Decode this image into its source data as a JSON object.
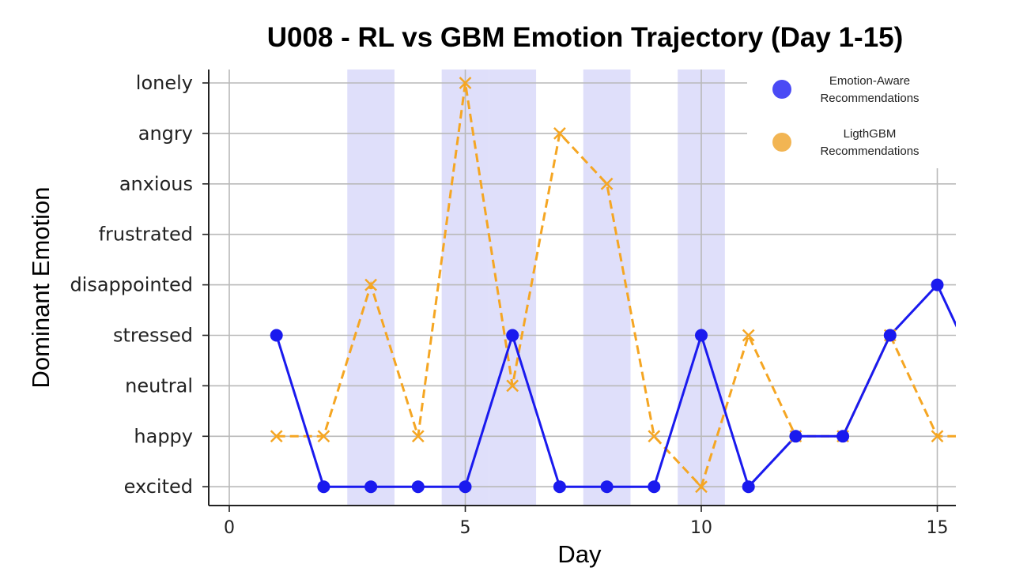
{
  "chart_data": {
    "type": "line",
    "title": "U008 - RL vs GBM Emotion Trajectory (Day 1-15)",
    "xlabel": "Day",
    "ylabel": "Dominant Emotion",
    "xlim": [
      -0.5,
      15.4
    ],
    "x_ticks": [
      0,
      5,
      10,
      15
    ],
    "y_categories": [
      "excited",
      "happy",
      "neutral",
      "stressed",
      "disappointed",
      "frustrated",
      "anxious",
      "angry",
      "lonely"
    ],
    "grid": true,
    "legend_position": "top-right",
    "shaded_days": [
      3,
      5,
      6,
      8,
      10
    ],
    "series": [
      {
        "name": "Emotion-Aware Recommendations",
        "color": "#1a1aee",
        "style": "solid",
        "marker": "circle",
        "x": [
          1,
          2,
          3,
          4,
          5,
          6,
          7,
          8,
          9,
          10,
          11,
          12,
          13,
          14,
          15,
          16
        ],
        "y": [
          "stressed",
          "excited",
          "excited",
          "excited",
          "excited",
          "stressed",
          "excited",
          "excited",
          "excited",
          "stressed",
          "excited",
          "happy",
          "happy",
          "stressed",
          "disappointed",
          "neutral"
        ]
      },
      {
        "name": "LigthGBM Recommendations",
        "color": "#f5a623",
        "style": "dashed",
        "marker": "x",
        "x": [
          1,
          2,
          3,
          4,
          5,
          6,
          7,
          8,
          9,
          10,
          11,
          12,
          13,
          14,
          15,
          16
        ],
        "y": [
          "happy",
          "happy",
          "disappointed",
          "happy",
          "lonely",
          "neutral",
          "angry",
          "anxious",
          "happy",
          "excited",
          "stressed",
          "happy",
          "happy",
          "stressed",
          "happy",
          "happy"
        ]
      }
    ],
    "legend": [
      {
        "line1": "Emotion-Aware",
        "line2": "Recommendations",
        "color": "#4a4af5"
      },
      {
        "line1": "LigthGBM",
        "line2": "Recommendations",
        "color": "#f2b553"
      }
    ]
  }
}
